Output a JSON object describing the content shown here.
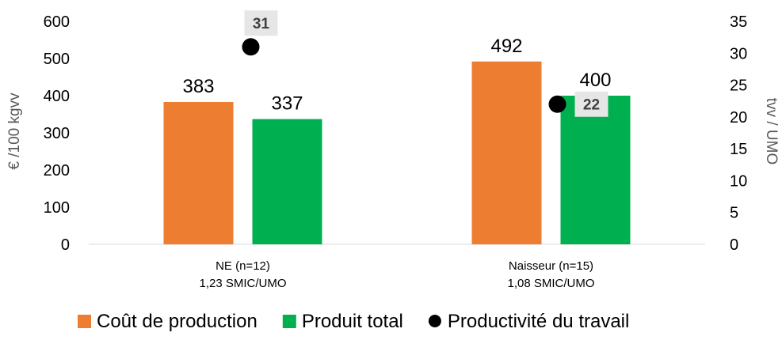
{
  "chart_data": {
    "type": "bar",
    "categories": [
      [
        "NE (n=12)",
        "1,23 SMIC/UMO"
      ],
      [
        "Naisseur (n=15)",
        "1,08 SMIC/UMO"
      ]
    ],
    "series": [
      {
        "name": "Coût de production",
        "values": [
          383,
          492
        ],
        "color": "#ED7D31",
        "axis": "left"
      },
      {
        "name": "Produit total",
        "values": [
          337,
          400
        ],
        "color": "#00B050",
        "axis": "left"
      },
      {
        "name": "Productivité du travail",
        "values": [
          31,
          22
        ],
        "display_values": [
          "31",
          "22"
        ],
        "color": "#000000",
        "type": "scatter",
        "axis": "right"
      }
    ],
    "ylabel": "€ /100 kgvv",
    "ylim": [
      0,
      600
    ],
    "yticks": [
      0,
      100,
      200,
      300,
      400,
      500,
      600
    ],
    "y2label": "tvv / UMO",
    "y2lim": [
      0,
      35
    ],
    "y2ticks": [
      0,
      5,
      10,
      15,
      20,
      25,
      30,
      35
    ],
    "grid": false,
    "legend": "bottom"
  }
}
